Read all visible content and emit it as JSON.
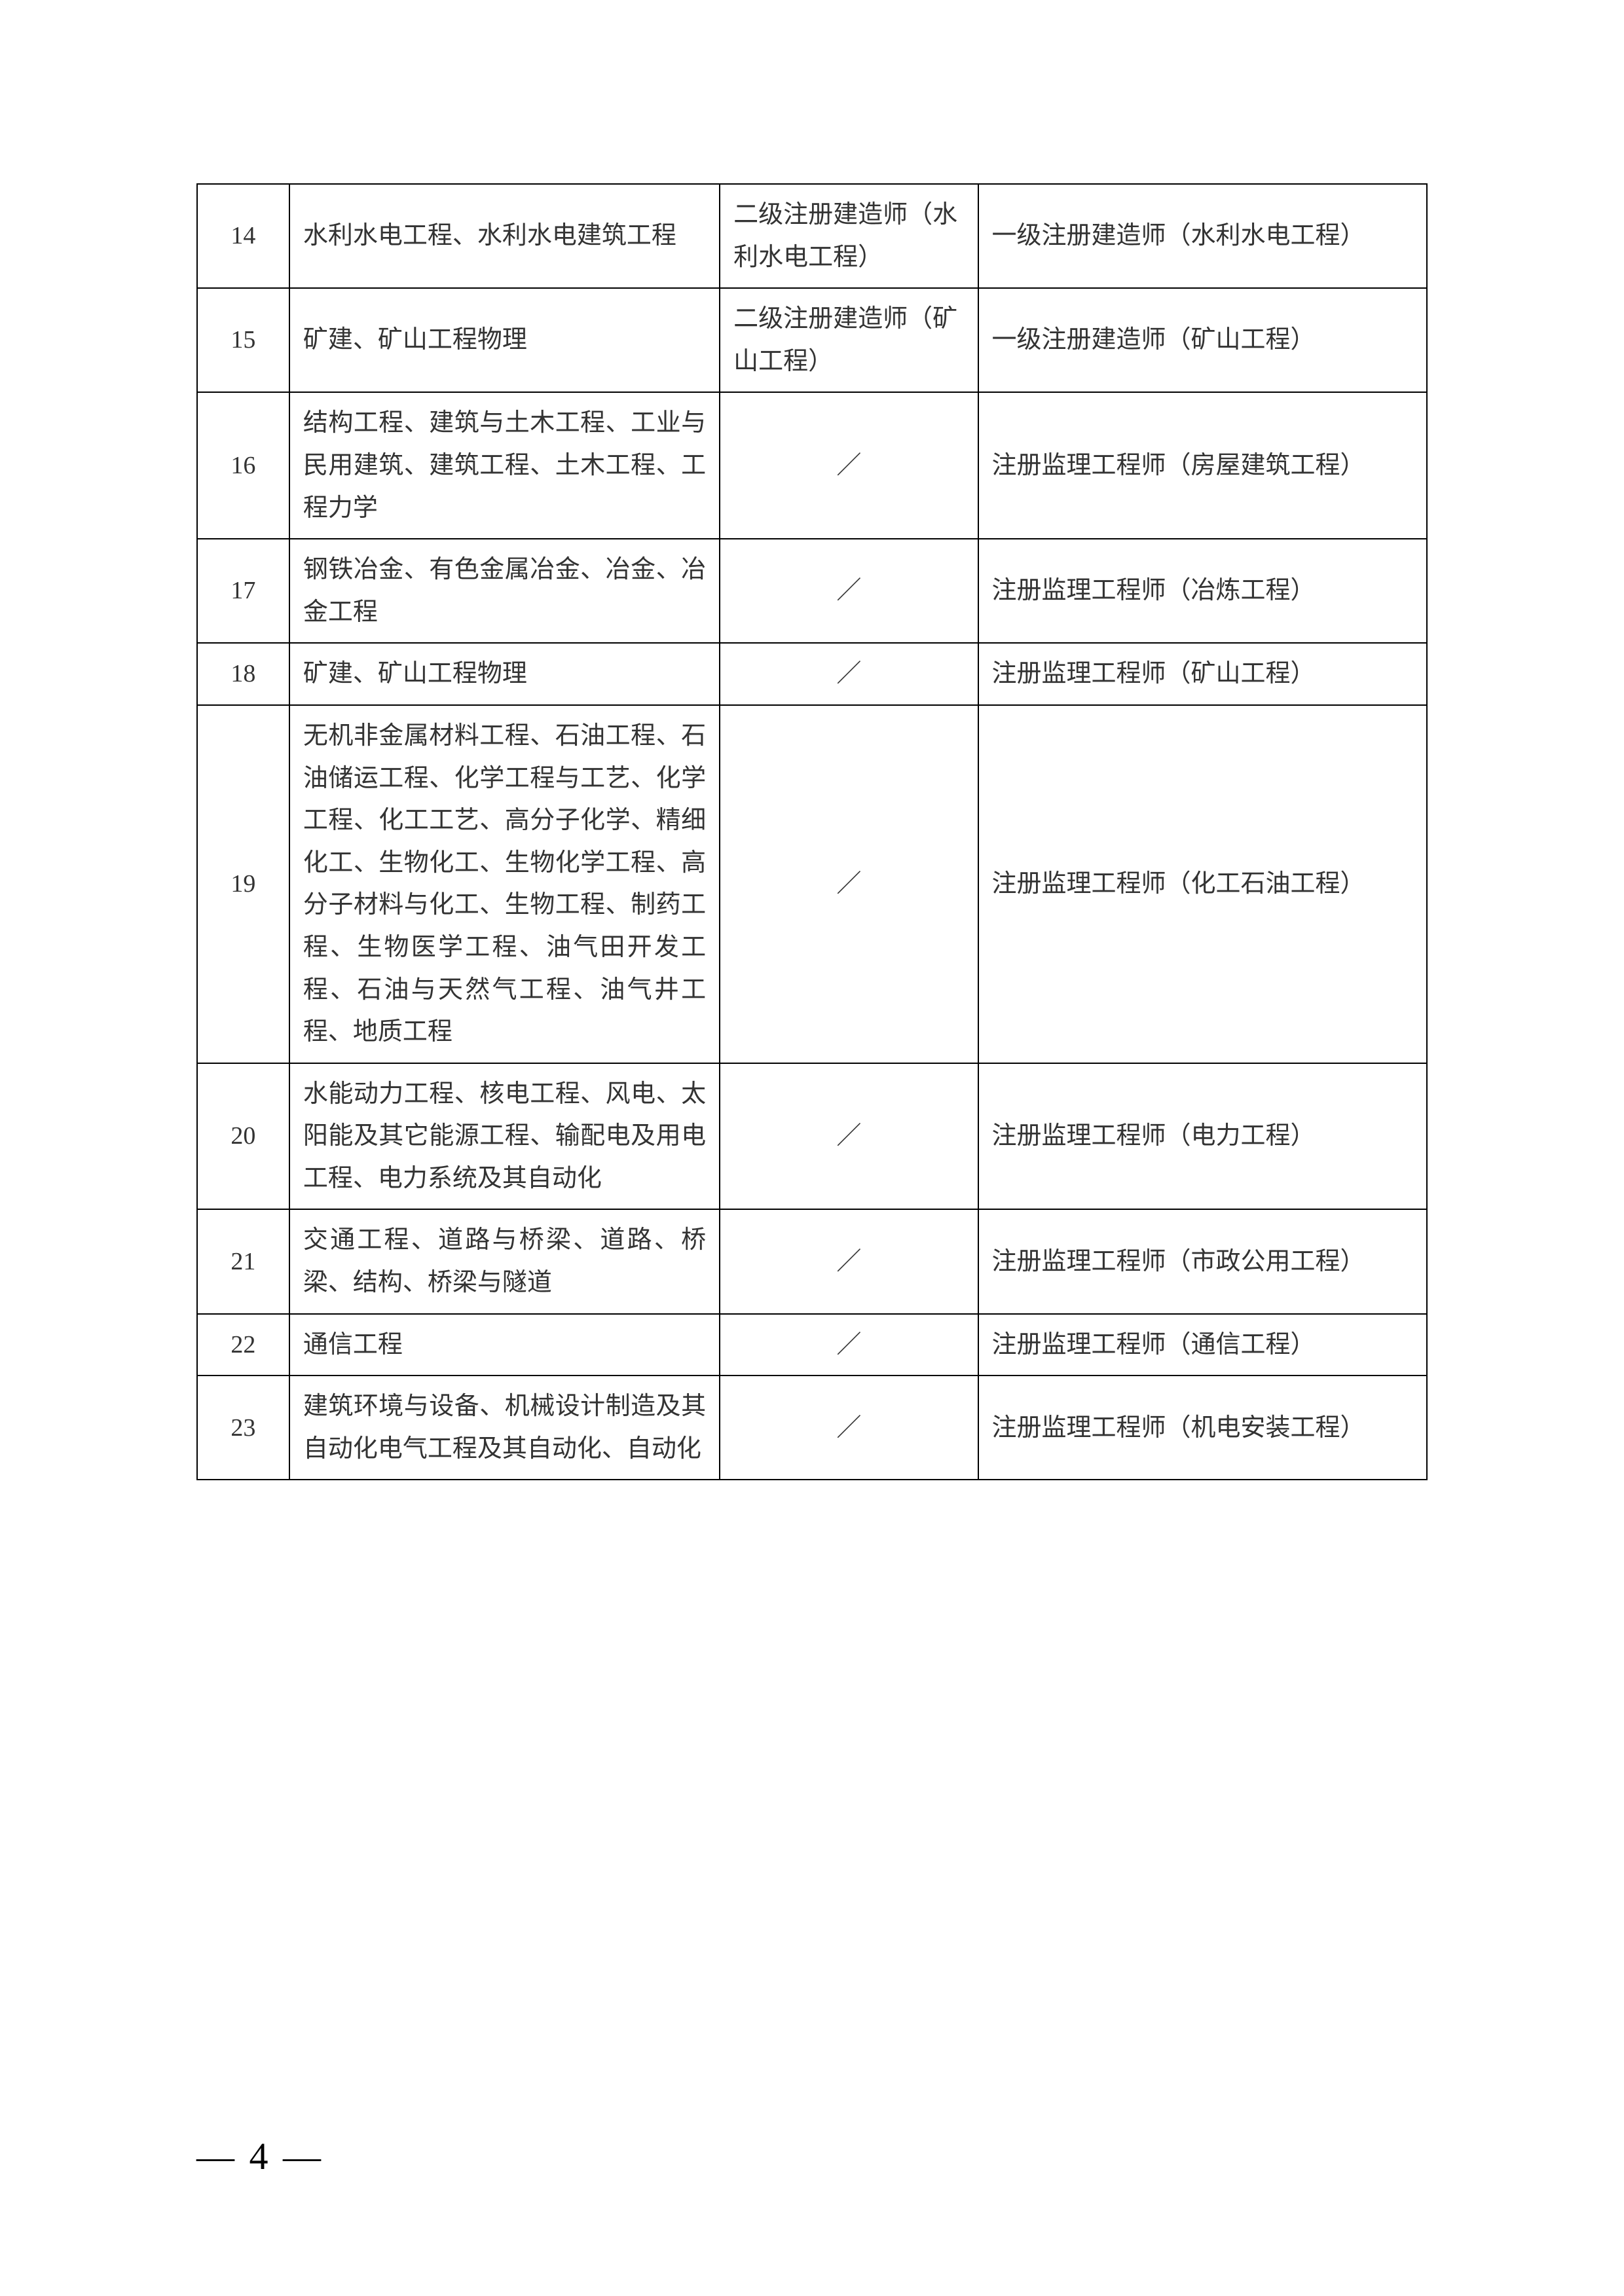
{
  "table": {
    "rows": [
      {
        "num": "14",
        "major": "水利水电工程、水利水电建筑工程",
        "level2": "二级注册建造师（水利水电工程）",
        "level1": "一级注册建造师（水利水电工程）"
      },
      {
        "num": "15",
        "major": "矿建、矿山工程物理",
        "level2": "二级注册建造师（矿山工程）",
        "level1": "一级注册建造师（矿山工程）"
      },
      {
        "num": "16",
        "major": "结构工程、建筑与土木工程、工业与民用建筑、建筑工程、土木工程、工程力学",
        "level2": "／",
        "level1": "注册监理工程师（房屋建筑工程）"
      },
      {
        "num": "17",
        "major": "钢铁冶金、有色金属冶金、冶金、冶金工程",
        "level2": "／",
        "level1": "注册监理工程师（冶炼工程）"
      },
      {
        "num": "18",
        "major": "矿建、矿山工程物理",
        "level2": "／",
        "level1": "注册监理工程师（矿山工程）"
      },
      {
        "num": "19",
        "major": "无机非金属材料工程、石油工程、石油储运工程、化学工程与工艺、化学工程、化工工艺、高分子化学、精细化工、生物化工、生物化学工程、高分子材料与化工、生物工程、制药工程、生物医学工程、油气田开发工程、石油与天然气工程、油气井工程、地质工程",
        "level2": "／",
        "level1": "注册监理工程师（化工石油工程）"
      },
      {
        "num": "20",
        "major": "水能动力工程、核电工程、风电、太阳能及其它能源工程、输配电及用电工程、电力系统及其自动化",
        "level2": "／",
        "level1": "注册监理工程师（电力工程）"
      },
      {
        "num": "21",
        "major": "交通工程、道路与桥梁、道路、桥梁、结构、桥梁与隧道",
        "level2": "／",
        "level1": "注册监理工程师（市政公用工程）"
      },
      {
        "num": "22",
        "major": "通信工程",
        "level2": "／",
        "level1": "注册监理工程师（通信工程）"
      },
      {
        "num": "23",
        "major": "建筑环境与设备、机械设计制造及其自动化电气工程及其自动化、自动化",
        "level2": "／",
        "level1": "注册监理工程师（机电安装工程）"
      }
    ]
  },
  "page_number": "— 4 —"
}
